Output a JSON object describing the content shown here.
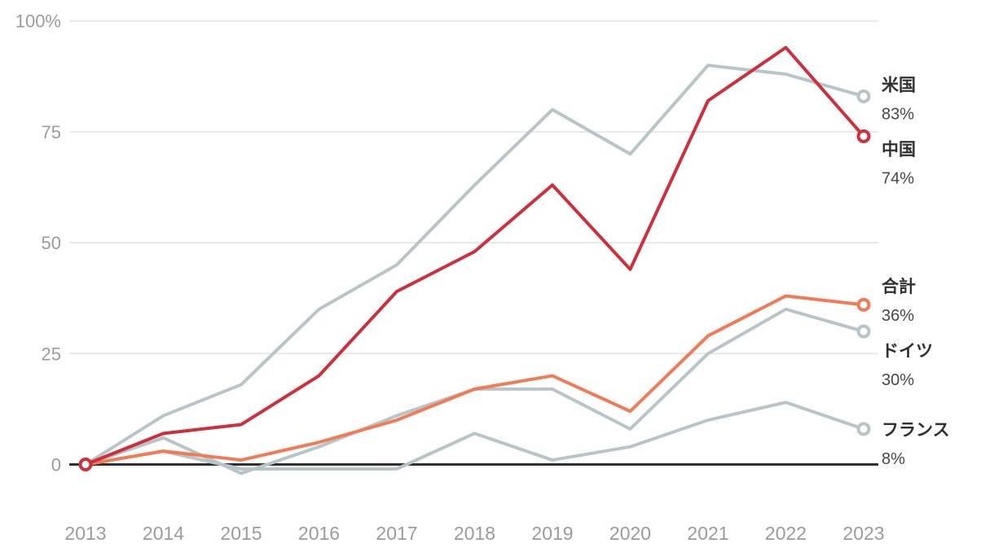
{
  "chart_data": {
    "type": "line",
    "title": "",
    "x_labels": [
      "2013",
      "2014",
      "2015",
      "2016",
      "2017",
      "2018",
      "2019",
      "2020",
      "2021",
      "2022",
      "2023"
    ],
    "y_ticks": [
      {
        "value": 100,
        "label": "100%"
      },
      {
        "value": 75,
        "label": "75"
      },
      {
        "value": 50,
        "label": "50"
      },
      {
        "value": 25,
        "label": "25"
      },
      {
        "value": 0,
        "label": "0"
      }
    ],
    "ylim": [
      -3,
      100
    ],
    "grid": "horizontal",
    "legend_position": "right-of-line-endpoints",
    "series": [
      {
        "id": "us",
        "name": "米国",
        "value_label": "83%",
        "color": "#b8c5c8",
        "z": 1,
        "start_marker": false,
        "end_marker": true,
        "values": [
          0,
          11,
          18,
          35,
          45,
          63,
          80,
          70,
          90,
          88,
          83
        ]
      },
      {
        "id": "china",
        "name": "中国",
        "value_label": "74%",
        "color": "#ce2f3a",
        "z": 5,
        "start_marker": true,
        "end_marker": true,
        "values": [
          0,
          7,
          9,
          20,
          39,
          48,
          63,
          44,
          82,
          94,
          74
        ]
      },
      {
        "id": "total",
        "name": "合計",
        "value_label": "36%",
        "color": "#f27a55",
        "z": 4,
        "start_marker": false,
        "end_marker": true,
        "values": [
          0,
          3,
          1,
          5,
          10,
          17,
          20,
          12,
          29,
          38,
          36
        ]
      },
      {
        "id": "germany",
        "name": "ドイツ",
        "value_label": "30%",
        "color": "#b8c5c8",
        "z": 2,
        "start_marker": false,
        "end_marker": true,
        "values": [
          0,
          6,
          -2,
          4,
          11,
          17,
          17,
          8,
          25,
          35,
          30
        ]
      },
      {
        "id": "france",
        "name": "フランス",
        "value_label": "8%",
        "color": "#b8c5c8",
        "z": 3,
        "start_marker": false,
        "end_marker": true,
        "values": [
          0,
          3,
          -1,
          -1,
          -1,
          7,
          1,
          4,
          10,
          14,
          8
        ]
      }
    ],
    "colors": {
      "gray_line": "#b8c5c8",
      "red_line": "#ce2f3a",
      "orange_line": "#f27a55",
      "gridline": "#e8e8e8",
      "zero_line": "#2f2f2f",
      "axis_text": "#9b9b9b",
      "label_text": "#303030",
      "value_text": "#474747",
      "background": "#ffffff"
    }
  }
}
